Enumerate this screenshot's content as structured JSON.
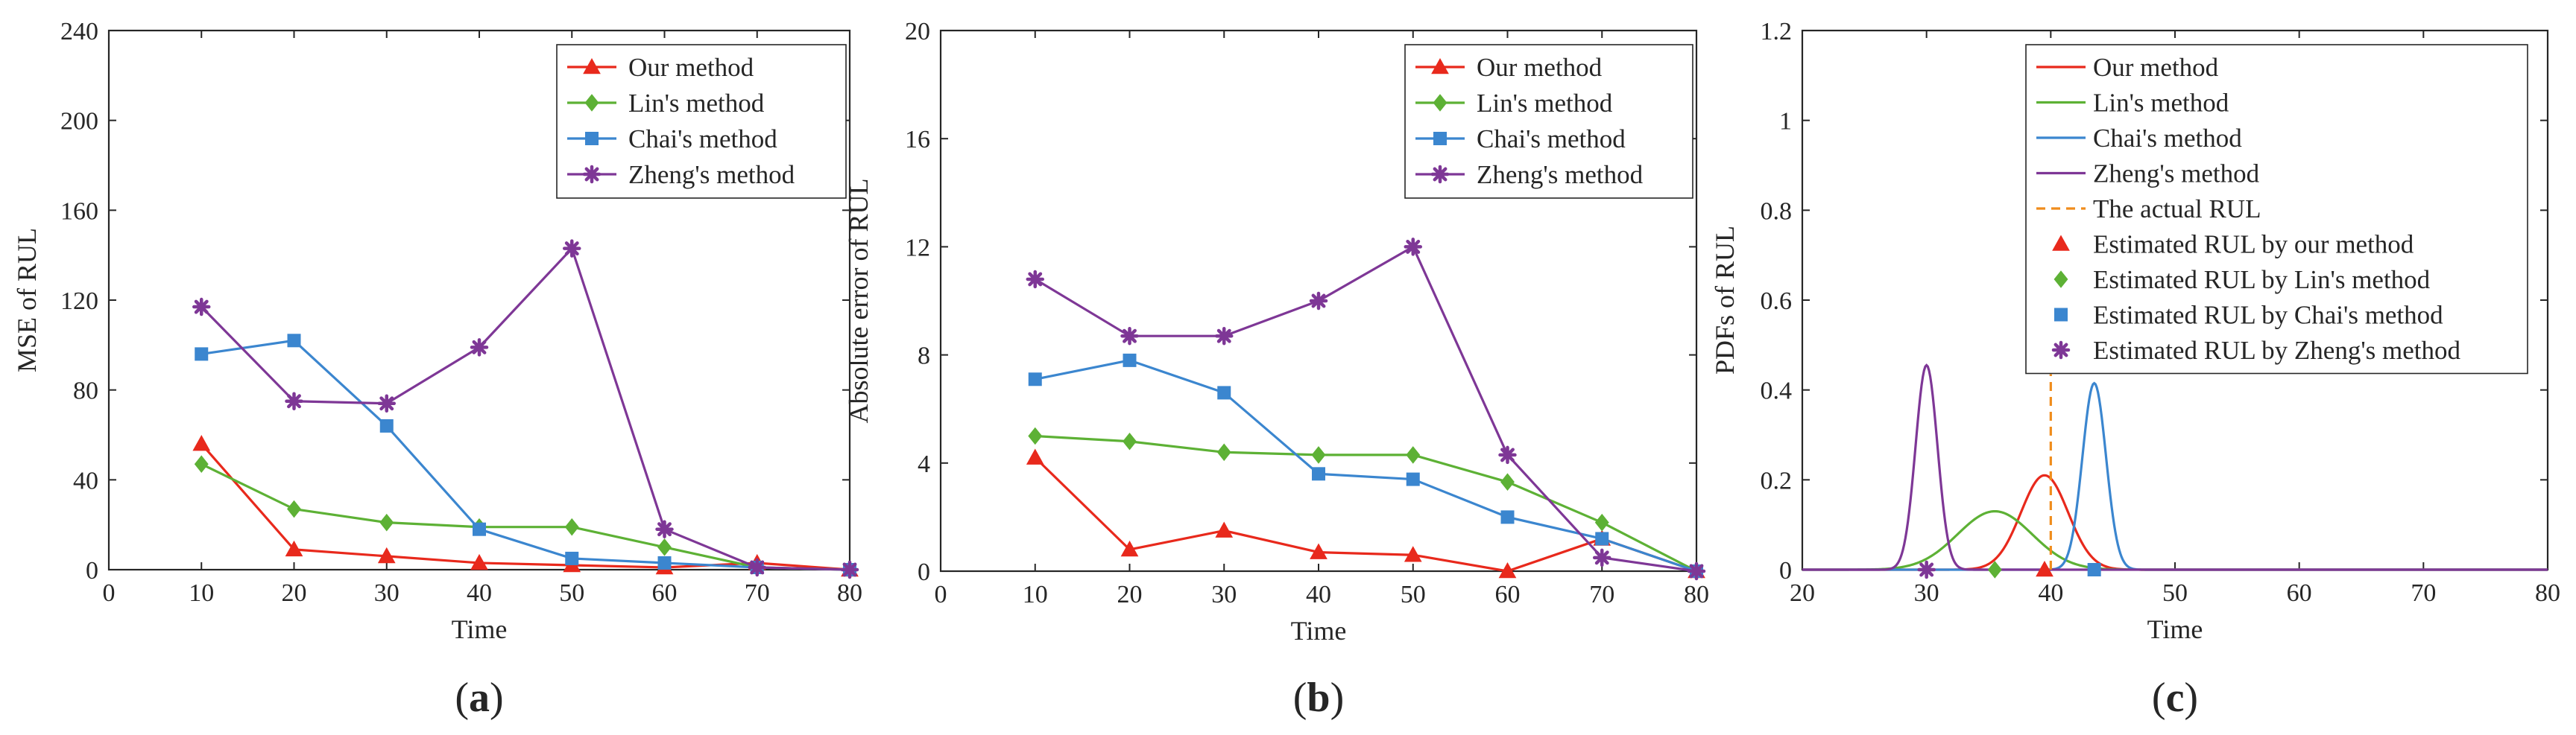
{
  "chart_data": [
    {
      "type": "line",
      "panel_label": "(a)",
      "xlabel": "Time",
      "ylabel": "MSE of RUL",
      "xlim": [
        0,
        80
      ],
      "ylim": [
        0,
        240
      ],
      "xticks": [
        0,
        10,
        20,
        30,
        40,
        50,
        60,
        70,
        80
      ],
      "yticks": [
        0,
        40,
        80,
        120,
        160,
        200,
        240
      ],
      "legend_position": "top-right",
      "grid": false,
      "x": [
        10,
        20,
        30,
        40,
        50,
        60,
        70,
        80
      ],
      "series": [
        {
          "name": "Our method",
          "color": "#e8291c",
          "marker": "triangle",
          "values": [
            56,
            9,
            6,
            3,
            2,
            1,
            3,
            0
          ]
        },
        {
          "name": "Lin's method",
          "color": "#5db135",
          "marker": "diamond",
          "values": [
            47,
            27,
            21,
            19,
            19,
            10,
            1,
            0
          ]
        },
        {
          "name": "Chai's method",
          "color": "#3b86cf",
          "marker": "square",
          "values": [
            96,
            102,
            64,
            18,
            5,
            3,
            1,
            0
          ]
        },
        {
          "name": "Zheng's method",
          "color": "#7e3796",
          "marker": "star",
          "values": [
            117,
            75,
            74,
            99,
            143,
            18,
            1,
            0
          ]
        }
      ]
    },
    {
      "type": "line",
      "panel_label": "(b)",
      "xlabel": "Time",
      "ylabel": "Absolute error of RUL",
      "xlim": [
        0,
        80
      ],
      "ylim": [
        0,
        20
      ],
      "xticks": [
        0,
        10,
        20,
        30,
        40,
        50,
        60,
        70,
        80
      ],
      "yticks": [
        0,
        4,
        8,
        12,
        16,
        20
      ],
      "legend_position": "top-right",
      "grid": false,
      "x": [
        10,
        20,
        30,
        40,
        50,
        60,
        70,
        80
      ],
      "series": [
        {
          "name": "Our method",
          "color": "#e8291c",
          "marker": "triangle",
          "values": [
            4.2,
            0.8,
            1.5,
            0.7,
            0.6,
            0.0,
            1.2,
            0.0
          ]
        },
        {
          "name": "Lin's method",
          "color": "#5db135",
          "marker": "diamond",
          "values": [
            5.0,
            4.8,
            4.4,
            4.3,
            4.3,
            3.3,
            1.8,
            0.0
          ]
        },
        {
          "name": "Chai's method",
          "color": "#3b86cf",
          "marker": "square",
          "values": [
            7.1,
            7.8,
            6.6,
            3.6,
            3.4,
            2.0,
            1.2,
            0.0
          ]
        },
        {
          "name": "Zheng's method",
          "color": "#7e3796",
          "marker": "star",
          "values": [
            10.8,
            8.7,
            8.7,
            10.0,
            12.0,
            4.3,
            0.5,
            0.0
          ]
        }
      ]
    },
    {
      "type": "line",
      "panel_label": "(c)",
      "xlabel": "Time",
      "ylabel": "PDFs of RUL",
      "xlim": [
        20,
        80
      ],
      "ylim": [
        0,
        1.2
      ],
      "xticks": [
        20,
        30,
        40,
        50,
        60,
        70,
        80
      ],
      "yticks": [
        0,
        0.2,
        0.4,
        0.6,
        0.8,
        1,
        1.2
      ],
      "legend_position": "top-right",
      "grid": false,
      "series": [
        {
          "name": "Our method",
          "color": "#e8291c",
          "kind": "pdf",
          "mean": 39.5,
          "std": 1.9,
          "peak": 0.21
        },
        {
          "name": "Lin's method",
          "color": "#5db135",
          "kind": "pdf",
          "mean": 35.5,
          "std": 3.0,
          "peak": 0.13
        },
        {
          "name": "Chai's method",
          "color": "#3b86cf",
          "kind": "pdf",
          "mean": 43.5,
          "std": 0.95,
          "peak": 0.415
        },
        {
          "name": "Zheng's method",
          "color": "#7e3796",
          "kind": "pdf",
          "mean": 30.0,
          "std": 0.88,
          "peak": 0.455
        }
      ],
      "actual_rul": {
        "name": "The actual RUL",
        "color": "#f08c1c",
        "x": 40,
        "top": 0.435
      },
      "estimates": [
        {
          "name": "Estimated RUL by our method",
          "color": "#e8291c",
          "marker": "triangle",
          "x": 39.5,
          "y": 0
        },
        {
          "name": "Estimated RUL by Lin's method",
          "color": "#5db135",
          "marker": "diamond",
          "x": 35.5,
          "y": 0
        },
        {
          "name": "Estimated RUL by Chai's method",
          "color": "#3b86cf",
          "marker": "square",
          "x": 43.5,
          "y": 0
        },
        {
          "name": "Estimated RUL by Zheng's method",
          "color": "#7e3796",
          "marker": "star",
          "x": 30.0,
          "y": 0
        }
      ]
    }
  ]
}
